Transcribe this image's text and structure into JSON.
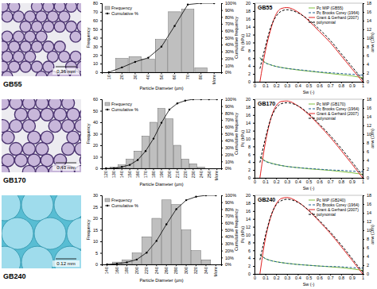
{
  "micrographs": [
    {
      "label": "GB55",
      "scale_bar": "0.36 mm"
    },
    {
      "label": "GB170",
      "scale_bar": "0.43 mm"
    },
    {
      "label": "GB240",
      "scale_bar": "0.12 mm"
    }
  ],
  "chart_data": [
    {
      "type": "bar",
      "x_label": "Particle Diameter (µm)",
      "y_label": "Frequency",
      "y2_label": "Cumulative frequency",
      "categories": [
        "10",
        "20",
        "30",
        "40",
        "50",
        "60",
        "70",
        "80",
        "More"
      ],
      "series": [
        {
          "name": "Frequency",
          "type": "bar",
          "color": "#bfbfbf",
          "values": [
            0,
            16,
            18,
            15,
            38,
            70,
            73,
            5,
            0
          ]
        },
        {
          "name": "Cumulative %",
          "type": "line",
          "axis": "y2",
          "color": "#000000",
          "marker": "circle",
          "values": [
            0,
            7,
            15,
            21,
            37,
            67,
            98,
            100,
            100
          ]
        }
      ],
      "ylim": [
        0,
        80
      ],
      "yticks": [
        0,
        10,
        20,
        30,
        40,
        50,
        60,
        70,
        80
      ],
      "y2lim": [
        0,
        100
      ],
      "y2ticks": [
        {
          "value": 0,
          "label": "0%"
        },
        {
          "value": 10,
          "label": "10%"
        },
        {
          "value": 20,
          "label": "20%"
        },
        {
          "value": 30,
          "label": "30%"
        },
        {
          "value": 40,
          "label": "40%"
        },
        {
          "value": 50,
          "label": "50%"
        },
        {
          "value": 60,
          "label": "60%"
        },
        {
          "value": 70,
          "label": "70%"
        },
        {
          "value": 80,
          "label": "80%"
        },
        {
          "value": 90,
          "label": "90%"
        },
        {
          "value": 100,
          "label": "100%"
        }
      ],
      "legend": "top-left",
      "grid": false
    },
    {
      "type": "line",
      "title": "GB55",
      "x_label": "Sw (-)",
      "y_label": "Pc (kPa)",
      "y2_label": "anw (1/m)",
      "series": [
        {
          "name": "Pc MIP (GB55)",
          "color": "#7fbf3f",
          "line_style": "solid",
          "x": [
            0.05,
            0.1,
            0.15,
            0.2,
            0.3,
            0.4,
            0.5,
            0.6,
            0.7,
            0.8,
            0.9,
            1.0
          ],
          "values": [
            6.2,
            4.9,
            4.3,
            3.9,
            3.4,
            3.0,
            2.7,
            2.4,
            2.1,
            1.8,
            1.5,
            1.0
          ]
        },
        {
          "name": "Pc Brooks Corey (1964)",
          "color": "#1f5f8f",
          "line_style": "dashed",
          "x": [
            0.05,
            0.1,
            0.15,
            0.2,
            0.3,
            0.4,
            0.5,
            0.6,
            0.7,
            0.8,
            0.9,
            1.0
          ],
          "values": [
            6.0,
            4.8,
            4.3,
            3.9,
            3.4,
            3.1,
            2.8,
            2.5,
            2.3,
            2.1,
            1.9,
            1.7
          ]
        },
        {
          "name": "Grant & Gerhard (2007)",
          "axis": "y2",
          "color": "#e02020",
          "line_style": "solid",
          "x": [
            0.05,
            0.1,
            0.15,
            0.2,
            0.25,
            0.3,
            0.4,
            0.5,
            0.6,
            0.7,
            0.8,
            0.9,
            0.95,
            1.0
          ],
          "values": [
            0,
            7,
            12,
            15.5,
            16.8,
            17,
            16,
            14,
            11.5,
            9,
            6,
            3,
            1.5,
            0
          ]
        },
        {
          "name": "polynomial",
          "axis": "y2",
          "color": "#000000",
          "line_style": "dashed",
          "x": [
            0.05,
            0.1,
            0.15,
            0.2,
            0.25,
            0.3,
            0.4,
            0.5,
            0.6,
            0.7,
            0.8,
            0.9,
            0.95,
            1.0
          ],
          "values": [
            3,
            8,
            12.5,
            15,
            16.2,
            16.5,
            15.8,
            14.2,
            12,
            9.5,
            6.5,
            3.5,
            2,
            0.5
          ]
        }
      ],
      "xlim": [
        0,
        1
      ],
      "xticks": [
        0,
        0.1,
        0.2,
        0.3,
        0.4,
        0.5,
        0.6,
        0.7,
        0.8,
        0.9,
        1
      ],
      "ylim": [
        0,
        20
      ],
      "yticks": [
        0,
        2,
        4,
        6,
        8,
        10,
        12,
        14,
        16,
        18,
        20
      ],
      "y2lim": [
        0,
        18
      ],
      "y2ticks": [
        0,
        2,
        4,
        6,
        8,
        10,
        12,
        14,
        16,
        18
      ],
      "legend": "top-right",
      "grid": false
    },
    {
      "type": "bar",
      "x_label": "Particle Diameter (µm)",
      "y_label": "Frequency",
      "y2_label": "Cumulative frequency",
      "categories": [
        "120",
        "130",
        "140",
        "150",
        "160",
        "170",
        "180",
        "190",
        "200",
        "210",
        "220",
        "230",
        "240",
        "250",
        "More"
      ],
      "series": [
        {
          "name": "Frequency",
          "type": "bar",
          "color": "#bfbfbf",
          "values": [
            0,
            1,
            3,
            8,
            15,
            28,
            40,
            52,
            43,
            20,
            8,
            4,
            1,
            0,
            0
          ]
        },
        {
          "name": "Cumulative %",
          "type": "line",
          "axis": "y2",
          "color": "#000000",
          "marker": "circle",
          "values": [
            0,
            0,
            2,
            5,
            12,
            25,
            43,
            66,
            85,
            94,
            98,
            100,
            100,
            100,
            100
          ]
        }
      ],
      "ylim": [
        0,
        60
      ],
      "yticks": [
        0,
        10,
        20,
        30,
        40,
        50,
        60
      ],
      "y2lim": [
        0,
        100
      ],
      "y2ticks": [
        {
          "value": 0,
          "label": "0%"
        },
        {
          "value": 10,
          "label": "10%"
        },
        {
          "value": 20,
          "label": "20%"
        },
        {
          "value": 30,
          "label": "30%"
        },
        {
          "value": 40,
          "label": "40%"
        },
        {
          "value": 50,
          "label": "50%"
        },
        {
          "value": 60,
          "label": "60%"
        },
        {
          "value": 70,
          "label": "70%"
        },
        {
          "value": 80,
          "label": "80%"
        },
        {
          "value": 90,
          "label": "90%"
        },
        {
          "value": 100,
          "label": "100%"
        }
      ],
      "legend": "top-left",
      "grid": false
    },
    {
      "type": "line",
      "title": "GB170",
      "x_label": "Sw (-)",
      "y_label": "Pc (kPa)",
      "y2_label": "anw (1/m)",
      "series": [
        {
          "name": "Pc MIP (GB170)",
          "color": "#7fbf3f",
          "line_style": "solid",
          "x": [
            0.05,
            0.1,
            0.15,
            0.2,
            0.3,
            0.4,
            0.5,
            0.6,
            0.7,
            0.8,
            0.9,
            1.0
          ],
          "values": [
            5.4,
            4.3,
            3.8,
            3.4,
            2.9,
            2.6,
            2.3,
            2.1,
            1.9,
            1.6,
            1.3,
            0.9
          ]
        },
        {
          "name": "Pc Brooks Corey (1964)",
          "color": "#1f5f8f",
          "line_style": "dashed",
          "x": [
            0.05,
            0.1,
            0.15,
            0.2,
            0.3,
            0.4,
            0.5,
            0.6,
            0.7,
            0.8,
            0.9,
            1.0
          ],
          "values": [
            5.2,
            4.2,
            3.7,
            3.4,
            2.9,
            2.6,
            2.4,
            2.2,
            2.0,
            1.9,
            1.7,
            1.6
          ]
        },
        {
          "name": "Grant & Gerhard (2007)",
          "axis": "y2",
          "color": "#e02020",
          "line_style": "solid",
          "x": [
            0.05,
            0.1,
            0.15,
            0.2,
            0.25,
            0.3,
            0.4,
            0.5,
            0.6,
            0.7,
            0.8,
            0.9,
            0.95,
            1.0
          ],
          "values": [
            0,
            8,
            13.5,
            16.5,
            17.5,
            17.6,
            16.5,
            14.5,
            12,
            9.3,
            6.3,
            3.2,
            1.6,
            0
          ]
        },
        {
          "name": "polynomial",
          "axis": "y2",
          "color": "#000000",
          "line_style": "dashed",
          "x": [
            0.05,
            0.1,
            0.15,
            0.2,
            0.25,
            0.3,
            0.4,
            0.5,
            0.6,
            0.7,
            0.8,
            0.9,
            0.95,
            1.0
          ],
          "values": [
            3.5,
            9,
            13.5,
            16,
            17,
            17.2,
            16.5,
            14.7,
            12.3,
            9.7,
            6.8,
            3.7,
            2.1,
            0.6
          ]
        }
      ],
      "xlim": [
        0,
        1
      ],
      "xticks": [
        0,
        0.1,
        0.2,
        0.3,
        0.4,
        0.5,
        0.6,
        0.7,
        0.8,
        0.9,
        1
      ],
      "ylim": [
        0,
        20
      ],
      "yticks": [
        0,
        2,
        4,
        6,
        8,
        10,
        12,
        14,
        16,
        18,
        20
      ],
      "y2lim": [
        0,
        18
      ],
      "y2ticks": [
        0,
        2,
        4,
        6,
        8,
        10,
        12,
        14,
        16,
        18
      ],
      "legend": "top-right",
      "grid": false
    },
    {
      "type": "bar",
      "x_label": "Particle Diameter (µm)",
      "y_label": "Frequency",
      "y2_label": "Cumulative frequency",
      "categories": [
        "140",
        "160",
        "180",
        "200",
        "220",
        "240",
        "260",
        "280",
        "300",
        "320",
        "340",
        "More"
      ],
      "series": [
        {
          "name": "Frequency",
          "type": "bar",
          "color": "#bfbfbf",
          "values": [
            0,
            1,
            2,
            5,
            12,
            20,
            28,
            26,
            15,
            6,
            2,
            0
          ]
        },
        {
          "name": "Cumulative %",
          "type": "line",
          "axis": "y2",
          "color": "#000000",
          "marker": "circle",
          "values": [
            0,
            1,
            3,
            7,
            17,
            34,
            58,
            80,
            93,
            98,
            100,
            100
          ]
        }
      ],
      "ylim": [
        0,
        30
      ],
      "yticks": [
        0,
        5,
        10,
        15,
        20,
        25,
        30
      ],
      "y2lim": [
        0,
        100
      ],
      "y2ticks": [
        {
          "value": 0,
          "label": "0%"
        },
        {
          "value": 10,
          "label": "10%"
        },
        {
          "value": 20,
          "label": "20%"
        },
        {
          "value": 30,
          "label": "30%"
        },
        {
          "value": 40,
          "label": "40%"
        },
        {
          "value": 50,
          "label": "50%"
        },
        {
          "value": 60,
          "label": "60%"
        },
        {
          "value": 70,
          "label": "70%"
        },
        {
          "value": 80,
          "label": "80%"
        },
        {
          "value": 90,
          "label": "90%"
        },
        {
          "value": 100,
          "label": "100%"
        }
      ],
      "legend": "top-left",
      "grid": false
    },
    {
      "type": "line",
      "title": "GB240",
      "x_label": "Sw (-)",
      "y_label": "Pc (kPa)",
      "y2_label": "anw (1/m)",
      "series": [
        {
          "name": "Pc MIP (GB240)",
          "color": "#7fbf3f",
          "line_style": "solid",
          "x": [
            0.05,
            0.1,
            0.15,
            0.2,
            0.3,
            0.4,
            0.5,
            0.6,
            0.7,
            0.8,
            0.9,
            1.0
          ],
          "values": [
            5.0,
            3.9,
            3.4,
            3.1,
            2.7,
            2.4,
            2.2,
            2.0,
            1.8,
            1.6,
            1.3,
            0.9
          ]
        },
        {
          "name": "Pc Brooks Corey (1964)",
          "color": "#1f5f8f",
          "line_style": "dashed",
          "x": [
            0.05,
            0.1,
            0.15,
            0.2,
            0.3,
            0.4,
            0.5,
            0.6,
            0.7,
            0.8,
            0.9,
            1.0
          ],
          "values": [
            4.8,
            3.9,
            3.4,
            3.1,
            2.7,
            2.4,
            2.2,
            2.0,
            1.9,
            1.8,
            1.6,
            1.5
          ]
        },
        {
          "name": "Grant & Gerhard (2007)",
          "axis": "y2",
          "color": "#e02020",
          "line_style": "solid",
          "x": [
            0.05,
            0.1,
            0.15,
            0.2,
            0.25,
            0.3,
            0.4,
            0.5,
            0.6,
            0.7,
            0.8,
            0.9,
            0.95,
            1.0
          ],
          "values": [
            0,
            8,
            13,
            16,
            17.3,
            17.5,
            16.5,
            14.5,
            12,
            9.3,
            6.3,
            3.2,
            1.6,
            0
          ]
        },
        {
          "name": "polynomial",
          "axis": "y2",
          "color": "#000000",
          "line_style": "dashed",
          "x": [
            0.05,
            0.1,
            0.15,
            0.2,
            0.25,
            0.3,
            0.4,
            0.5,
            0.6,
            0.7,
            0.8,
            0.9,
            0.95,
            1.0
          ],
          "values": [
            3.2,
            8.7,
            13.2,
            15.8,
            16.8,
            17.1,
            16.4,
            14.6,
            12.2,
            9.6,
            6.7,
            3.6,
            2,
            0.5
          ]
        }
      ],
      "xlim": [
        0,
        1
      ],
      "xticks": [
        0,
        0.1,
        0.2,
        0.3,
        0.4,
        0.5,
        0.6,
        0.7,
        0.8,
        0.9,
        1
      ],
      "ylim": [
        0,
        20
      ],
      "yticks": [
        0,
        2,
        4,
        6,
        8,
        10,
        12,
        14,
        16,
        18,
        20
      ],
      "y2lim": [
        0,
        18
      ],
      "y2ticks": [
        0,
        2,
        4,
        6,
        8,
        10,
        12,
        14,
        16,
        18
      ],
      "legend": "top-right",
      "grid": false
    }
  ]
}
